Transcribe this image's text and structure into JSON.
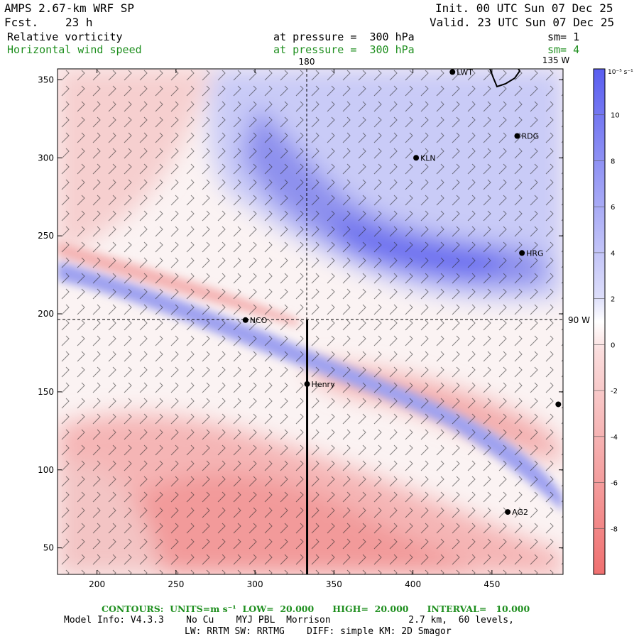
{
  "header": {
    "model": "AMPS 2.67-km WRF SP",
    "fcst_label": "Fcst.",
    "fcst_value": "23 h",
    "init": "Init. 00 UTC Sun 07 Dec 25",
    "valid": "Valid. 23 UTC Sun 07 Dec 25",
    "field1_name": "Relative vorticity",
    "field1_level": "at pressure =  300 hPa",
    "field1_sm": "sm= 1",
    "field2_name": "Horizontal wind speed",
    "field2_level": "at pressure =  300 hPa",
    "field2_sm": "sm= 4"
  },
  "map": {
    "meridian_labels": [
      "180",
      "135 W"
    ],
    "parallel_label": "90 W",
    "stations": [
      {
        "name": "LWT",
        "x": 425,
        "y": 355
      },
      {
        "name": "RDG",
        "x": 466,
        "y": 314
      },
      {
        "name": "KLN",
        "x": 402,
        "y": 300
      },
      {
        "name": "HRG",
        "x": 469,
        "y": 239
      },
      {
        "name": "NCO",
        "x": 294,
        "y": 196
      },
      {
        "name": "Henry",
        "x": 333,
        "y": 155
      },
      {
        "name": "",
        "x": 492,
        "y": 142
      },
      {
        "name": "AG2",
        "x": 460,
        "y": 73
      }
    ],
    "cross_section": {
      "x": 333,
      "y_from": 33,
      "y_to": 196
    }
  },
  "chart_data": {
    "type": "heatmap",
    "xlim": [
      175,
      495
    ],
    "ylim": [
      33,
      357
    ],
    "x_ticks": [
      200,
      250,
      300,
      350,
      400,
      450
    ],
    "y_ticks": [
      50,
      100,
      150,
      200,
      250,
      300,
      350
    ],
    "colorbar": {
      "unit_label": "10⁻⁵ s⁻¹",
      "ticks": [
        10,
        8,
        6,
        4,
        2,
        0,
        -2,
        -4,
        -6,
        -8
      ],
      "range": [
        -10,
        12
      ],
      "positive_color": "#5a5ef0",
      "negative_color": "#f07070"
    }
  },
  "colors": {
    "positive": "#5a5ef0",
    "negative": "#f07070",
    "text_green": "#1f8f1f"
  },
  "footer": {
    "contours": "CONTOURS:  UNITS=m s⁻¹  LOW=  20.000      HIGH=  20.000      INTERVAL=   10.000",
    "model_info": "Model Info: V4.3.3    No Cu    MYJ PBL  Morrison              2.7 km,  60 levels,",
    "physics": "LW: RRTM SW: RRTMG    DIFF: simple KM: 2D Smagor"
  }
}
